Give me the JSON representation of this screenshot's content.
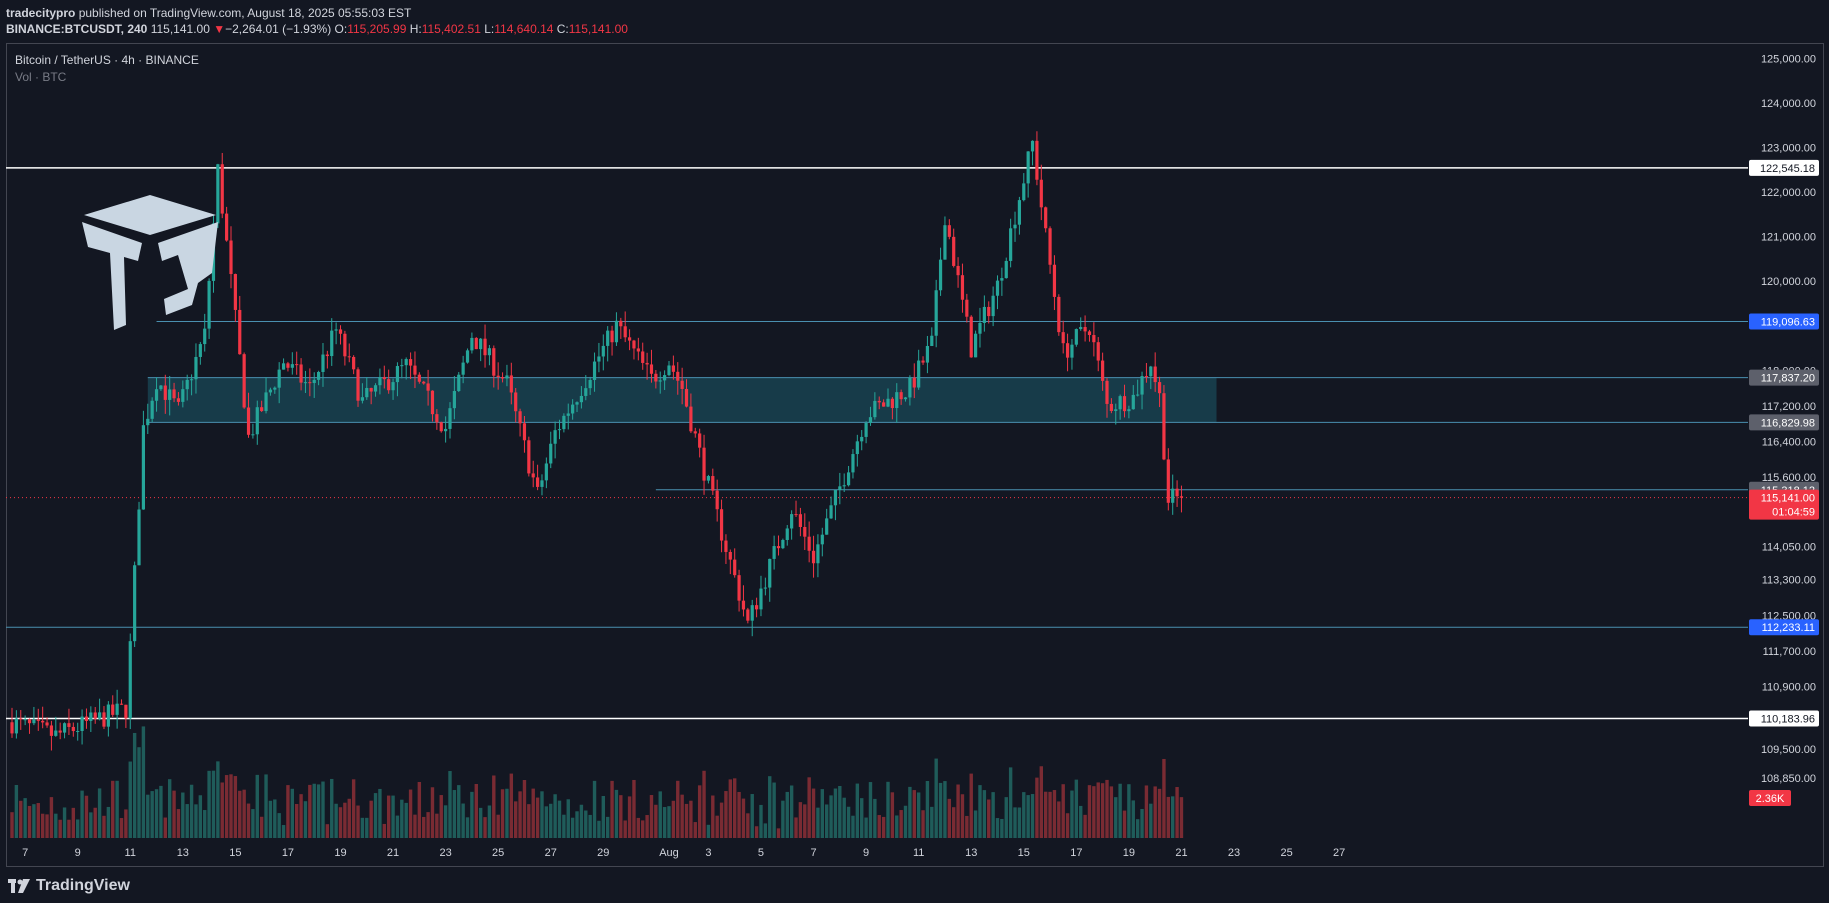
{
  "header": {
    "publisher": "tradecitypro",
    "published_text": "published on TradingView.com, August 18, 2025 05:55:03 EST",
    "symbol": "BINANCE:BTCUSDT, 240",
    "last": "115,141.00",
    "change_arrow": "▼",
    "change": "−2,264.01 (−1.93%)",
    "o_label": "O:",
    "o_value": "115,205.99",
    "h_label": "H:",
    "h_value": "115,402.51",
    "l_label": "L:",
    "l_value": "114,640.14",
    "c_label": "C:",
    "c_value": "115,141.00"
  },
  "legend": {
    "title": "Bitcoin / TetherUS · 4h · BINANCE",
    "indicator": "Vol · BTC"
  },
  "footer": {
    "brand": "TradingView"
  },
  "colors": {
    "bg": "#131722",
    "up": "#26a69a",
    "down": "#f23645",
    "up_vol": "#1f5c5a",
    "down_vol": "#7a2b33",
    "level_blue": "#2962ff",
    "level_white": "#ffffff",
    "zone": "#1c5a6a",
    "axis_text": "#d1d4dc"
  },
  "chart_data": {
    "type": "candlestick",
    "symbol": "BTCUSDT",
    "timeframe": "4h",
    "ylim": [
      108500,
      125400
    ],
    "price_ticks": [
      "125,000.00",
      "124,000.00",
      "123,000.00",
      "122,000.00",
      "121,000.00",
      "120,000.00",
      "118,000.00",
      "117,200.00",
      "116,400.00",
      "115,600.00",
      "114,050.00",
      "113,300.00",
      "112,500.00",
      "111,700.00",
      "110,900.00",
      "109,500.00",
      "108,850.00"
    ],
    "tick_values": [
      125000,
      124000,
      123000,
      122000,
      121000,
      120000,
      118000,
      117200,
      116400,
      115600,
      114050,
      113300,
      112500,
      111700,
      110900,
      109500,
      108850
    ],
    "date_labels": [
      "5",
      "7",
      "9",
      "11",
      "13",
      "15",
      "17",
      "19",
      "21",
      "23",
      "25",
      "27",
      "29",
      "Aug",
      "3",
      "5",
      "7",
      "9",
      "11",
      "13",
      "15",
      "17",
      "19",
      "21",
      "23",
      "25",
      "27"
    ],
    "date_index": [
      -9,
      3,
      15,
      27,
      39,
      51,
      63,
      75,
      87,
      99,
      111,
      123,
      135,
      150,
      159,
      171,
      183,
      195,
      207,
      219,
      231,
      243,
      255,
      267,
      279,
      291,
      303
    ],
    "levels": [
      {
        "price": 122545.18,
        "label": "122,545.18",
        "style": "white",
        "from_index": -20
      },
      {
        "price": 119096.63,
        "label": "119,096.63",
        "style": "blue",
        "from_index": 33
      },
      {
        "price": 115318.12,
        "label": "115,318.12",
        "style": "gray",
        "from_index": 147
      },
      {
        "price": 112233.11,
        "label": "112,233.11",
        "style": "blue",
        "from_index": -20
      },
      {
        "price": 110183.96,
        "label": "110,183.96",
        "style": "white",
        "from_index": -20
      }
    ],
    "zone": {
      "top": 117837.2,
      "bottom": 116829.98,
      "top_label": "117,837.20",
      "bottom_label": "116,829.98",
      "from_index": 31,
      "to_index": 275
    },
    "current_price": {
      "value": 115141.0,
      "label": "115,141.00",
      "countdown": "01:04:59"
    },
    "volume_label": "2.36K",
    "path": [
      {
        "i": 0,
        "p": 110100
      },
      {
        "i": 10,
        "p": 109800
      },
      {
        "i": 26,
        "p": 110400
      },
      {
        "i": 27,
        "p": 111800
      },
      {
        "i": 30,
        "p": 116700
      },
      {
        "i": 33,
        "p": 117800
      },
      {
        "i": 38,
        "p": 117100
      },
      {
        "i": 44,
        "p": 118800
      },
      {
        "i": 47,
        "p": 122500
      },
      {
        "i": 50,
        "p": 120000
      },
      {
        "i": 54,
        "p": 116500
      },
      {
        "i": 62,
        "p": 118200
      },
      {
        "i": 68,
        "p": 117600
      },
      {
        "i": 74,
        "p": 118900
      },
      {
        "i": 80,
        "p": 117300
      },
      {
        "i": 90,
        "p": 118100
      },
      {
        "i": 99,
        "p": 116700
      },
      {
        "i": 105,
        "p": 118800
      },
      {
        "i": 113,
        "p": 117700
      },
      {
        "i": 120,
        "p": 115200
      },
      {
        "i": 124,
        "p": 116600
      },
      {
        "i": 138,
        "p": 119000
      },
      {
        "i": 146,
        "p": 117800
      },
      {
        "i": 150,
        "p": 118200
      },
      {
        "i": 153,
        "p": 117600
      },
      {
        "i": 159,
        "p": 115400
      },
      {
        "i": 166,
        "p": 113000
      },
      {
        "i": 168,
        "p": 112300
      },
      {
        "i": 178,
        "p": 114900
      },
      {
        "i": 183,
        "p": 113800
      },
      {
        "i": 188,
        "p": 115100
      },
      {
        "i": 195,
        "p": 117000
      },
      {
        "i": 205,
        "p": 117600
      },
      {
        "i": 210,
        "p": 118600
      },
      {
        "i": 213,
        "p": 121500
      },
      {
        "i": 219,
        "p": 118500
      },
      {
        "i": 225,
        "p": 119900
      },
      {
        "i": 233,
        "p": 123100
      },
      {
        "i": 236,
        "p": 121000
      },
      {
        "i": 240,
        "p": 118400
      },
      {
        "i": 246,
        "p": 119000
      },
      {
        "i": 250,
        "p": 117200
      },
      {
        "i": 256,
        "p": 117400
      },
      {
        "i": 260,
        "p": 118200
      },
      {
        "i": 262,
        "p": 117400
      },
      {
        "i": 264,
        "p": 115100
      },
      {
        "i": 267,
        "p": 115141
      }
    ]
  }
}
